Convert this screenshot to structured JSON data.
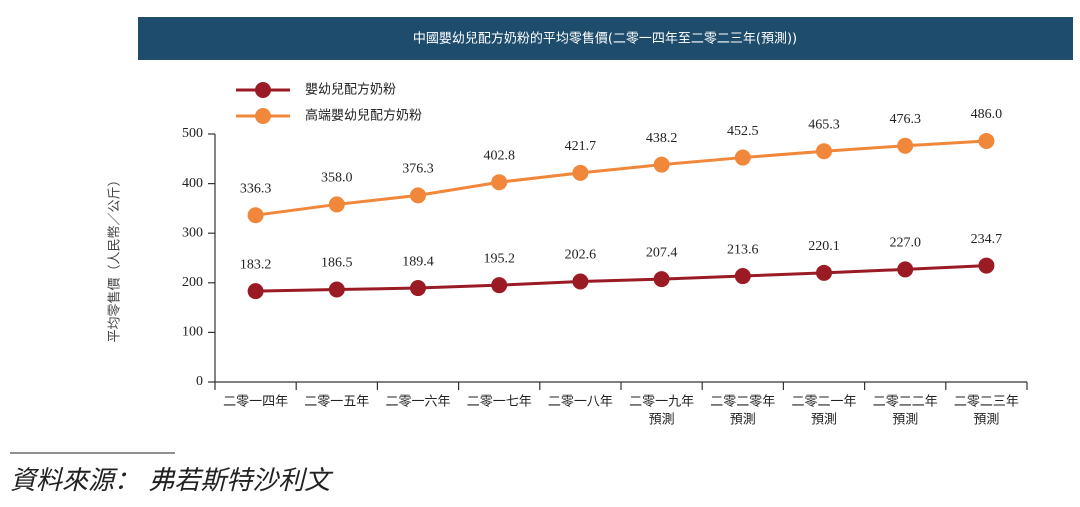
{
  "chart_data": {
    "type": "line",
    "title": "中國嬰幼兒配方奶粉的平均零售價(二零一四年至二零二三年(預測))",
    "y_label": "平均零售價（人民幣／公斤）",
    "source": "資料來源： 弗若斯特沙利文",
    "categories": [
      [
        "二零一四年"
      ],
      [
        "二零一五年"
      ],
      [
        "二零一六年"
      ],
      [
        "二零一七年"
      ],
      [
        "二零一八年"
      ],
      [
        "二零一九年",
        "預測"
      ],
      [
        "二零二零年",
        "預測"
      ],
      [
        "二零二一年",
        "預測"
      ],
      [
        "二零二二年",
        "預測"
      ],
      [
        "二零二三年",
        "預測"
      ]
    ],
    "series": [
      {
        "name": "嬰幼兒配方奶粉",
        "color": "#9b1b25",
        "values": [
          183.2,
          186.5,
          189.4,
          195.2,
          202.6,
          207.4,
          213.6,
          220.1,
          227.0,
          234.7
        ],
        "value_labels": [
          "183.2",
          "186.5",
          "189.4",
          "195.2",
          "202.6",
          "207.4",
          "213.6",
          "220.1",
          "227.0",
          "234.7"
        ]
      },
      {
        "name": "高端嬰幼兒配方奶粉",
        "color": "#f0873a",
        "values": [
          336.3,
          358.0,
          376.3,
          402.8,
          421.7,
          438.2,
          452.5,
          465.3,
          476.3,
          486.0
        ],
        "value_labels": [
          "336.3",
          "358.0",
          "376.3",
          "402.8",
          "421.7",
          "438.2",
          "452.5",
          "465.3",
          "476.3",
          "486.0"
        ]
      }
    ],
    "ylim": [
      0,
      500
    ],
    "yticks": [
      0,
      100,
      200,
      300,
      400,
      500
    ]
  }
}
